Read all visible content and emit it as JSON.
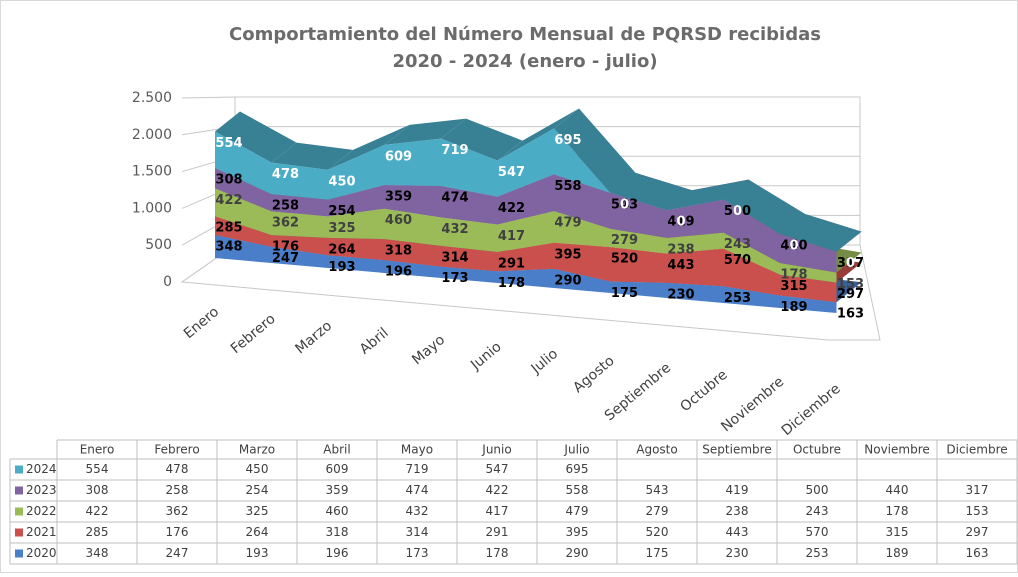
{
  "chart_data": {
    "type": "area3d",
    "title": "Comportamiento del Número Mensual de PQRSD recibidas",
    "subtitle": "2020 - 2024 (enero - julio)",
    "categories": [
      "Enero",
      "Febrero",
      "Marzo",
      "Abril",
      "Mayo",
      "Junio",
      "Julio",
      "Agosto",
      "Septiembre",
      "Octubre",
      "Noviembre",
      "Diciembre"
    ],
    "series": [
      {
        "name": "2020",
        "color": "#4a7ec8",
        "values": [
          348,
          247,
          193,
          196,
          173,
          178,
          290,
          175,
          230,
          253,
          189,
          163
        ]
      },
      {
        "name": "2021",
        "color": "#c9504c",
        "values": [
          285,
          176,
          264,
          318,
          314,
          291,
          395,
          520,
          443,
          570,
          315,
          297
        ]
      },
      {
        "name": "2022",
        "color": "#9bbb59",
        "values": [
          422,
          362,
          325,
          460,
          432,
          417,
          479,
          279,
          238,
          243,
          178,
          153
        ]
      },
      {
        "name": "2023",
        "color": "#8064a2",
        "values": [
          308,
          258,
          254,
          359,
          474,
          422,
          558,
          543,
          419,
          500,
          440,
          317
        ]
      },
      {
        "name": "2024",
        "color": "#4bacc6",
        "values": [
          554,
          478,
          450,
          609,
          719,
          547,
          695,
          0,
          0,
          0,
          0,
          0
        ]
      }
    ],
    "ylim": [
      0,
      2500
    ],
    "yticks": [
      0,
      500,
      {
        "value": 1000,
        "label": "1.000"
      },
      {
        "value": 1500,
        "label": "1.500"
      },
      {
        "value": 2000,
        "label": "2.000"
      },
      {
        "value": 2500,
        "label": "2.500"
      }
    ],
    "grid": true,
    "stacked": true,
    "data_table": true
  }
}
